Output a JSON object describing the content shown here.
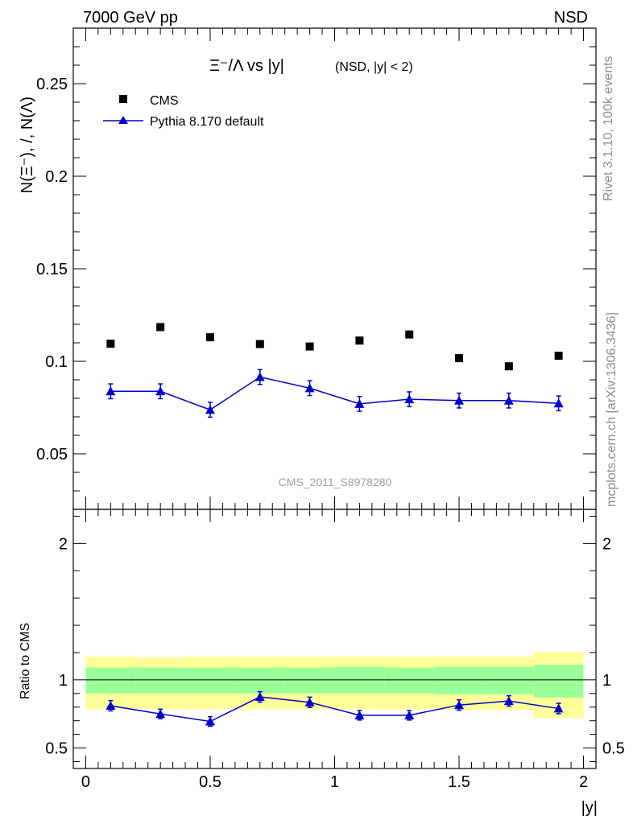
{
  "header": {
    "left": "7000 GeV pp",
    "right": "NSD"
  },
  "side_labels": {
    "rivet": "Rivet 3.1.10,  100k events",
    "mcplots": "mcplots.cern.ch [arXiv:1306.3436]"
  },
  "watermark": "CMS_2011_S8978280",
  "chart_data": [
    {
      "type": "scatter",
      "title": {
        "main": "Ξ⁻/Λ vs |y|",
        "sub": "(NSD, |y| < 2)"
      },
      "ylabel": "N(Ξ⁻), /, N(Λ)",
      "xlim": [
        -0.05,
        2.05
      ],
      "ylim": [
        0.02,
        0.28
      ],
      "yticks": [
        0.05,
        0.1,
        0.15,
        0.2,
        0.25
      ],
      "ytick_labels": [
        "0.05",
        "0.1",
        "0.15",
        "0.2",
        "0.25"
      ],
      "legend": {
        "position": "top-left"
      },
      "series": [
        {
          "name": "CMS",
          "marker": "square",
          "color": "#000000",
          "x": [
            0.1,
            0.3,
            0.5,
            0.7,
            0.9,
            1.1,
            1.3,
            1.5,
            1.7,
            1.9
          ],
          "y": [
            0.1095,
            0.1185,
            0.113,
            0.1093,
            0.108,
            0.1112,
            0.1145,
            0.1017,
            0.0973,
            0.103
          ]
        },
        {
          "name": "Pythia 8.170 default",
          "marker": "triangle",
          "color": "#0000cc",
          "x": [
            0.1,
            0.3,
            0.5,
            0.7,
            0.9,
            1.1,
            1.3,
            1.5,
            1.7,
            1.9
          ],
          "y": [
            0.0838,
            0.0838,
            0.0738,
            0.0915,
            0.0855,
            0.077,
            0.0795,
            0.0788,
            0.0788,
            0.0773
          ],
          "yerr": [
            0.004,
            0.004,
            0.004,
            0.004,
            0.004,
            0.004,
            0.004,
            0.004,
            0.004,
            0.004
          ]
        }
      ]
    },
    {
      "type": "line",
      "ylabel": "Ratio to CMS",
      "xlabel": "|y|",
      "xlim": [
        -0.05,
        2.05
      ],
      "ylim": [
        0.35,
        2.25
      ],
      "xticks": [
        0,
        0.5,
        1,
        1.5,
        2
      ],
      "xtick_labels": [
        "0",
        "0.5",
        "1",
        "1.5",
        "2"
      ],
      "yticks": [
        0.5,
        1,
        2
      ],
      "ytick_labels": [
        "0.5",
        "1",
        "2"
      ],
      "bands": [
        {
          "x0": 0.0,
          "x1": 0.2,
          "yellow": [
            0.785,
            1.17
          ],
          "green": [
            0.9,
            1.09
          ]
        },
        {
          "x0": 0.2,
          "x1": 0.4,
          "yellow": [
            0.785,
            1.165
          ],
          "green": [
            0.9,
            1.09
          ]
        },
        {
          "x0": 0.4,
          "x1": 0.6,
          "yellow": [
            0.785,
            1.17
          ],
          "green": [
            0.9,
            1.09
          ]
        },
        {
          "x0": 0.6,
          "x1": 0.8,
          "yellow": [
            0.785,
            1.17
          ],
          "green": [
            0.9,
            1.09
          ]
        },
        {
          "x0": 0.8,
          "x1": 1.0,
          "yellow": [
            0.785,
            1.17
          ],
          "green": [
            0.9,
            1.09
          ]
        },
        {
          "x0": 1.0,
          "x1": 1.2,
          "yellow": [
            0.785,
            1.17
          ],
          "green": [
            0.9,
            1.095
          ]
        },
        {
          "x0": 1.2,
          "x1": 1.4,
          "yellow": [
            0.785,
            1.17
          ],
          "green": [
            0.9,
            1.09
          ]
        },
        {
          "x0": 1.4,
          "x1": 1.6,
          "yellow": [
            0.78,
            1.17
          ],
          "green": [
            0.895,
            1.095
          ]
        },
        {
          "x0": 1.6,
          "x1": 1.8,
          "yellow": [
            0.78,
            1.17
          ],
          "green": [
            0.895,
            1.095
          ]
        },
        {
          "x0": 1.8,
          "x1": 2.0,
          "yellow": [
            0.72,
            1.205
          ],
          "green": [
            0.87,
            1.11
          ]
        }
      ],
      "reference": 1.0,
      "series": [
        {
          "name": "Pythia 8.170 default",
          "color": "#0000cc",
          "x": [
            0.1,
            0.3,
            0.5,
            0.7,
            0.9,
            1.1,
            1.3,
            1.5,
            1.7,
            1.9
          ],
          "y": [
            0.81,
            0.75,
            0.695,
            0.875,
            0.835,
            0.74,
            0.74,
            0.815,
            0.845,
            0.79
          ],
          "yerr": [
            0.038,
            0.035,
            0.035,
            0.038,
            0.038,
            0.035,
            0.035,
            0.038,
            0.038,
            0.038
          ]
        }
      ]
    }
  ]
}
